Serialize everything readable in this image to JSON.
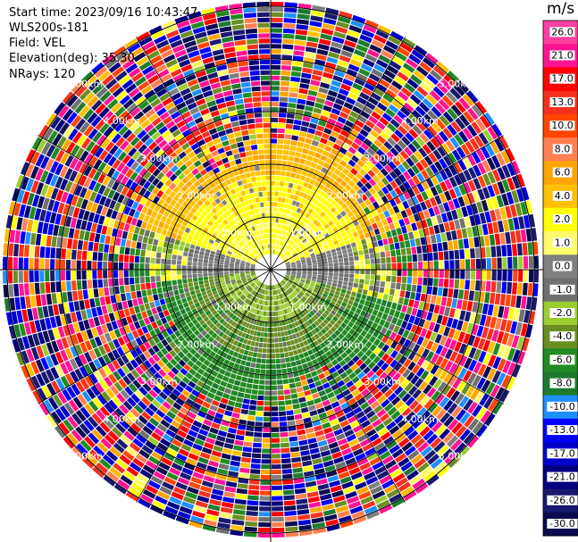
{
  "header": {
    "start_time": "Start time: 2023/09/16 10:43:47",
    "instrument": "WLS200s-181",
    "field": "Field: VEL",
    "elevation": "Elevation(deg): 35.30",
    "nrays": "NRays: 120"
  },
  "colorbar": {
    "unit": "m/s",
    "labels": [
      "26.0",
      "21.0",
      "17.0",
      "13.0",
      "10.0",
      "8.0",
      "6.0",
      "4.0",
      "2.0",
      "1.0",
      "0.0",
      "-1.0",
      "-2.0",
      "-4.0",
      "-6.0",
      "-8.0",
      "-10.0",
      "-13.0",
      "-17.0",
      "-21.0",
      "-26.0",
      "-30.0"
    ],
    "colors": [
      "#ff3fa0",
      "#ff1493",
      "#ff0000",
      "#f5301d",
      "#ff4500",
      "#ff7f50",
      "#ffa500",
      "#ffc000",
      "#ffff00",
      "#fffa6a",
      "#808080",
      "#707070",
      "#9acd32",
      "#6b8e23",
      "#228b22",
      "#1e7b2e",
      "#1e90ff",
      "#0000ff",
      "#0000cd",
      "#000080",
      "#191970",
      "#0b0b50"
    ]
  },
  "chart_data": {
    "type": "heatmap",
    "field": "VEL",
    "projection": "polar",
    "nrays": 120,
    "elevation_deg": 35.3,
    "range_rings_km": [
      1.0,
      2.0,
      3.0,
      4.0,
      5.0
    ],
    "max_range_km": 5.1,
    "ring_labels": [
      "1.00km",
      "1.00km",
      "1.00km",
      "1.00km",
      "2.00km",
      "2.00km",
      "2.00km",
      "2.00km",
      "3.00km",
      "3.00km",
      "3.00km",
      "3.00km",
      "4.00km",
      "4.00km",
      "4.00km",
      "4.00km",
      "5.00km",
      "5.00km",
      "5.00km",
      "5.00km"
    ],
    "value_range": [
      -30.0,
      26.0
    ],
    "regions": [
      {
        "name": "north-positive",
        "azimuth_start": 290,
        "azimuth_end": 70,
        "range_km": [
          0.3,
          2.5
        ],
        "typical_value": 3.0
      },
      {
        "name": "south-negative",
        "azimuth_start": 100,
        "azimuth_end": 270,
        "range_km": [
          0.3,
          2.5
        ],
        "typical_value": -3.0
      },
      {
        "name": "noise-far",
        "range_km": [
          2.5,
          5.1
        ],
        "typical_value": "random"
      }
    ]
  }
}
